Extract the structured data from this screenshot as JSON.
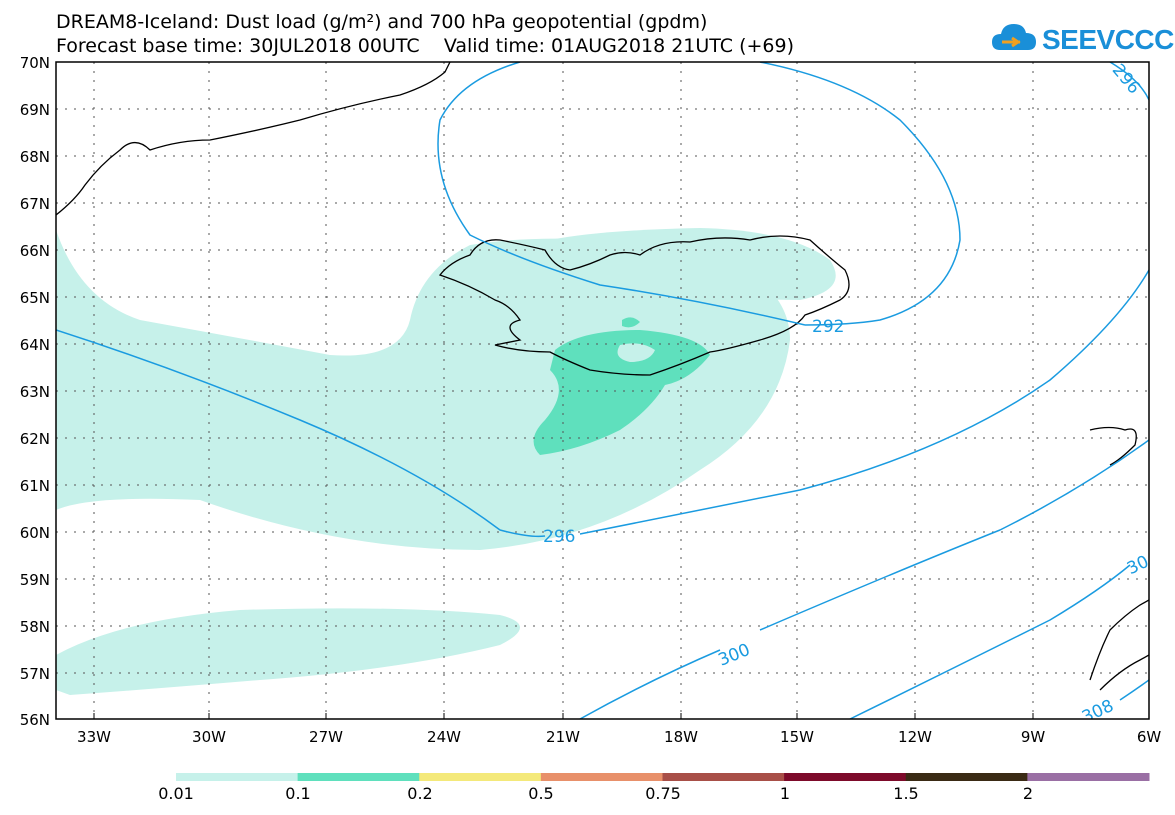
{
  "header": {
    "title_line1": "DREAM8-Iceland: Dust load (g/m²) and 700 hPa geopotential (gpdm)",
    "forecast_base": "Forecast base time: 30JUL2018 00UTC",
    "valid_time": "Valid time: 01AUG2018 21UTC (+69)"
  },
  "logo": {
    "text": "SEEVCCC",
    "icon": "cloud-icon"
  },
  "map": {
    "lat_labels": [
      "70N",
      "69N",
      "68N",
      "67N",
      "66N",
      "65N",
      "64N",
      "63N",
      "62N",
      "61N",
      "60N",
      "59N",
      "58N",
      "57N",
      "56N"
    ],
    "lon_labels": [
      "33W",
      "30W",
      "27W",
      "24W",
      "21W",
      "18W",
      "15W",
      "12W",
      "9W",
      "6W"
    ],
    "contour_labels": [
      "296",
      "292",
      "296",
      "300",
      "30",
      "308"
    ],
    "colors": {
      "dust_low": "#c6f1ea",
      "dust_mid": "#5fe0bd",
      "contour": "#1a9be0",
      "coast": "#000000"
    }
  },
  "colorbar": {
    "labels": [
      "0.01",
      "0.1",
      "0.2",
      "0.5",
      "0.75",
      "1",
      "1.5",
      "2"
    ],
    "colors": [
      "#c6f1ea",
      "#5fe0bd",
      "#f4e97a",
      "#e8906a",
      "#a84f48",
      "#7d0a2a",
      "#3a2a14",
      "#9a6fa4"
    ]
  }
}
